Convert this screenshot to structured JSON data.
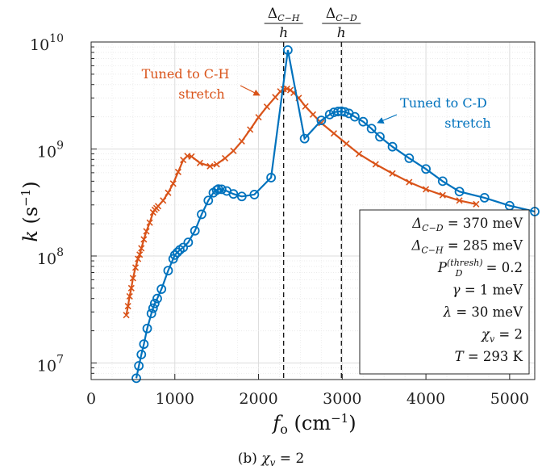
{
  "chart_data": {
    "type": "line",
    "title": "",
    "caption": "(b)  χ_v = 2",
    "xlabel": "f_o (cm^-1)",
    "ylabel": "k (s^-1)",
    "xlim": [
      0,
      5300
    ],
    "ylim": [
      7000000,
      10000000000
    ],
    "yscale": "log",
    "grid": true,
    "x_ticks": [
      0,
      1000,
      2000,
      3000,
      4000,
      5000
    ],
    "x_tick_labels": [
      "0",
      "1000",
      "2000",
      "3000",
      "4000",
      "5000"
    ],
    "y_tick_labels": [
      {
        "base": "10",
        "exp": "7",
        "value": 10000000
      },
      {
        "base": "10",
        "exp": "8",
        "value": 100000000
      },
      {
        "base": "10",
        "exp": "9",
        "value": 1000000000
      },
      {
        "base": "10",
        "exp": "10",
        "value": 10000000000
      }
    ],
    "vlines": [
      {
        "x": 2300,
        "label_num": "Δ_C−H",
        "label_den": "h"
      },
      {
        "x": 2990,
        "label_num": "Δ_C−D",
        "label_den": "h"
      }
    ],
    "series": [
      {
        "name": "Tuned to C-H stretch",
        "color": "#d95319",
        "marker": "x",
        "x": [
          420,
          440,
          460,
          480,
          500,
          530,
          560,
          580,
          600,
          630,
          660,
          700,
          740,
          760,
          780,
          800,
          860,
          920,
          980,
          1040,
          1100,
          1150,
          1200,
          1300,
          1420,
          1500,
          1600,
          1700,
          1800,
          1900,
          2000,
          2100,
          2200,
          2260,
          2300,
          2340,
          2380,
          2420,
          2480,
          2560,
          2650,
          2750,
          2900,
          3050,
          3200,
          3400,
          3600,
          3800,
          4000,
          4200,
          4400,
          4600
        ],
        "y": [
          28000000.0,
          34000000.0,
          42000000.0,
          50000000.0,
          62000000.0,
          78000000.0,
          94000000.0,
          103000000.0,
          118000000.0,
          143000000.0,
          170000000.0,
          205000000.0,
          255000000.0,
          270000000.0,
          280000000.0,
          292000000.0,
          330000000.0,
          390000000.0,
          475000000.0,
          610000000.0,
          790000000.0,
          860000000.0,
          850000000.0,
          740000000.0,
          690000000.0,
          720000000.0,
          820000000.0,
          960000000.0,
          1180000000.0,
          1520000000.0,
          1980000000.0,
          2480000000.0,
          3050000000.0,
          3450000000.0,
          3620000000.0,
          3650000000.0,
          3550000000.0,
          3350000000.0,
          3000000000.0,
          2500000000.0,
          2100000000.0,
          1750000000.0,
          1400000000.0,
          1120000000.0,
          900000000.0,
          720000000.0,
          590000000.0,
          490000000.0,
          420000000.0,
          370000000.0,
          330000000.0,
          305000000.0
        ]
      },
      {
        "name": "Tuned to C-D stretch",
        "color": "#0072bd",
        "marker": "o",
        "x": [
          540,
          570,
          600,
          630,
          670,
          720,
          740,
          760,
          790,
          840,
          920,
          980,
          1000,
          1030,
          1060,
          1100,
          1160,
          1240,
          1320,
          1400,
          1460,
          1500,
          1520,
          1560,
          1620,
          1700,
          1800,
          1950,
          2150,
          2350,
          2550,
          2750,
          2850,
          2900,
          2950,
          2990,
          3030,
          3080,
          3150,
          3250,
          3350,
          3450,
          3600,
          3800,
          4000,
          4200,
          4400,
          4700,
          5000,
          5300
        ],
        "y": [
          7200000.0,
          9400000.0,
          12000000.0,
          15000000.0,
          21000000.0,
          29000000.0,
          32500000.0,
          36000000.0,
          40000000.0,
          49000000.0,
          73000000.0,
          94000000.0,
          102000000.0,
          108000000.0,
          114000000.0,
          120000000.0,
          134000000.0,
          172000000.0,
          245000000.0,
          330000000.0,
          390000000.0,
          412000000.0,
          422000000.0,
          420000000.0,
          405000000.0,
          380000000.0,
          360000000.0,
          375000000.0,
          540000000.0,
          8400000000.0,
          1250000000.0,
          1850000000.0,
          2100000000.0,
          2200000000.0,
          2240000000.0,
          2250000000.0,
          2220000000.0,
          2150000000.0,
          2000000000.0,
          1800000000.0,
          1550000000.0,
          1300000000.0,
          1050000000.0,
          820000000.0,
          650000000.0,
          500000000.0,
          400000000.0,
          350000000.0,
          295000000.0,
          260000000.0
        ]
      }
    ],
    "annotations": [
      {
        "series": 0,
        "lines": [
          "Tuned to C-H",
          "stretch"
        ],
        "color": "#d95319"
      },
      {
        "series": 1,
        "lines": [
          "Tuned to C-D",
          "stretch"
        ],
        "color": "#0072bd"
      }
    ],
    "legend_box": {
      "placement": "bottom-right",
      "lines": [
        "Δ_C−D = 370 meV",
        "Δ_C−H = 285 meV",
        "P_D^(thresh) = 0.2",
        "γ = 1 meV",
        "λ = 30 meV",
        "χ_v = 2",
        "T = 293 K"
      ]
    }
  }
}
